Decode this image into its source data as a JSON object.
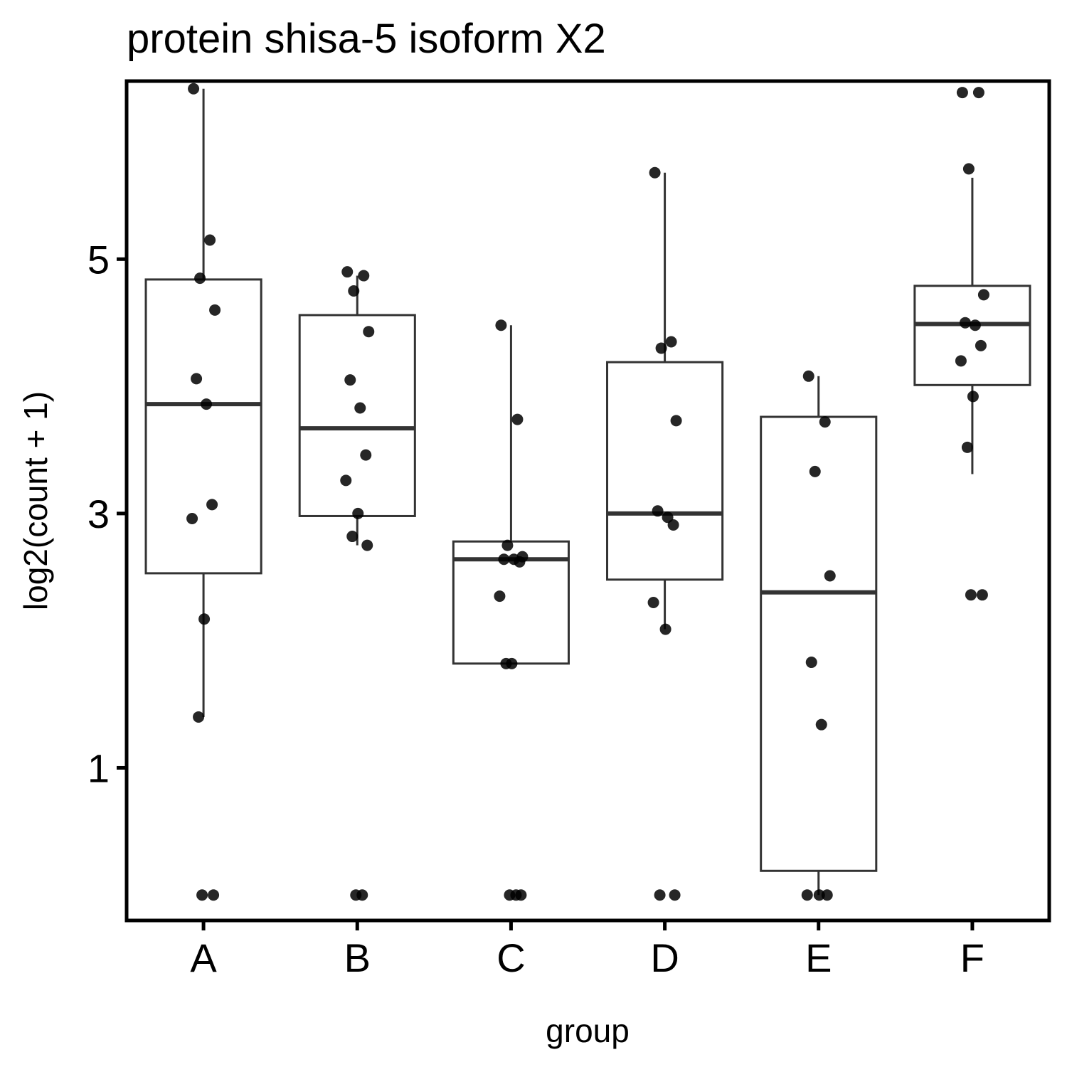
{
  "chart_data": {
    "type": "box",
    "title": "protein shisa-5 isoform X2",
    "xlabel": "group",
    "ylabel": "log2(count + 1)",
    "categories": [
      "A",
      "B",
      "C",
      "D",
      "E",
      "F"
    ],
    "y_ticks": [
      1,
      3,
      5
    ],
    "ylim": [
      -0.2,
      6.4
    ],
    "grid": false,
    "legend": "none",
    "boxes": [
      {
        "group": "A",
        "q1": 2.53,
        "median": 3.86,
        "q3": 4.84,
        "whisker_low": 1.4,
        "whisker_high": 6.34
      },
      {
        "group": "B",
        "q1": 2.98,
        "median": 3.67,
        "q3": 4.56,
        "whisker_low": 2.75,
        "whisker_high": 4.87
      },
      {
        "group": "C",
        "q1": 1.82,
        "median": 2.64,
        "q3": 2.78,
        "whisker_low": 1.82,
        "whisker_high": 4.48
      },
      {
        "group": "D",
        "q1": 2.48,
        "median": 3.0,
        "q3": 4.19,
        "whisker_low": 2.09,
        "whisker_high": 5.68
      },
      {
        "group": "E",
        "q1": 0.19,
        "median": 2.38,
        "q3": 3.76,
        "whisker_low": 0.0,
        "whisker_high": 4.08
      },
      {
        "group": "F",
        "q1": 4.01,
        "median": 4.49,
        "q3": 4.79,
        "whisker_low": 3.31,
        "whisker_high": 5.64
      }
    ],
    "points": [
      {
        "group": "A",
        "values": [
          6.34,
          5.15,
          4.85,
          4.6,
          4.06,
          3.86,
          3.07,
          2.96,
          2.17,
          1.4,
          0.0,
          0.0
        ]
      },
      {
        "group": "B",
        "values": [
          4.9,
          4.87,
          4.75,
          4.43,
          4.05,
          3.83,
          3.46,
          3.26,
          3.0,
          2.82,
          2.75,
          0.0,
          0.0
        ]
      },
      {
        "group": "C",
        "values": [
          4.48,
          3.74,
          2.75,
          2.66,
          2.64,
          2.64,
          2.62,
          2.35,
          1.82,
          1.82,
          0.0,
          0.0,
          0.0
        ]
      },
      {
        "group": "D",
        "values": [
          5.68,
          4.35,
          4.3,
          3.73,
          3.02,
          2.97,
          2.91,
          2.3,
          2.09,
          0.0,
          0.0
        ]
      },
      {
        "group": "E",
        "values": [
          4.08,
          3.72,
          3.33,
          2.51,
          1.83,
          1.34,
          0.0,
          0.0,
          0.0
        ]
      },
      {
        "group": "F",
        "values": [
          6.31,
          6.31,
          5.71,
          4.72,
          4.5,
          4.48,
          4.32,
          4.2,
          3.92,
          3.52,
          2.36,
          2.36
        ]
      }
    ]
  }
}
